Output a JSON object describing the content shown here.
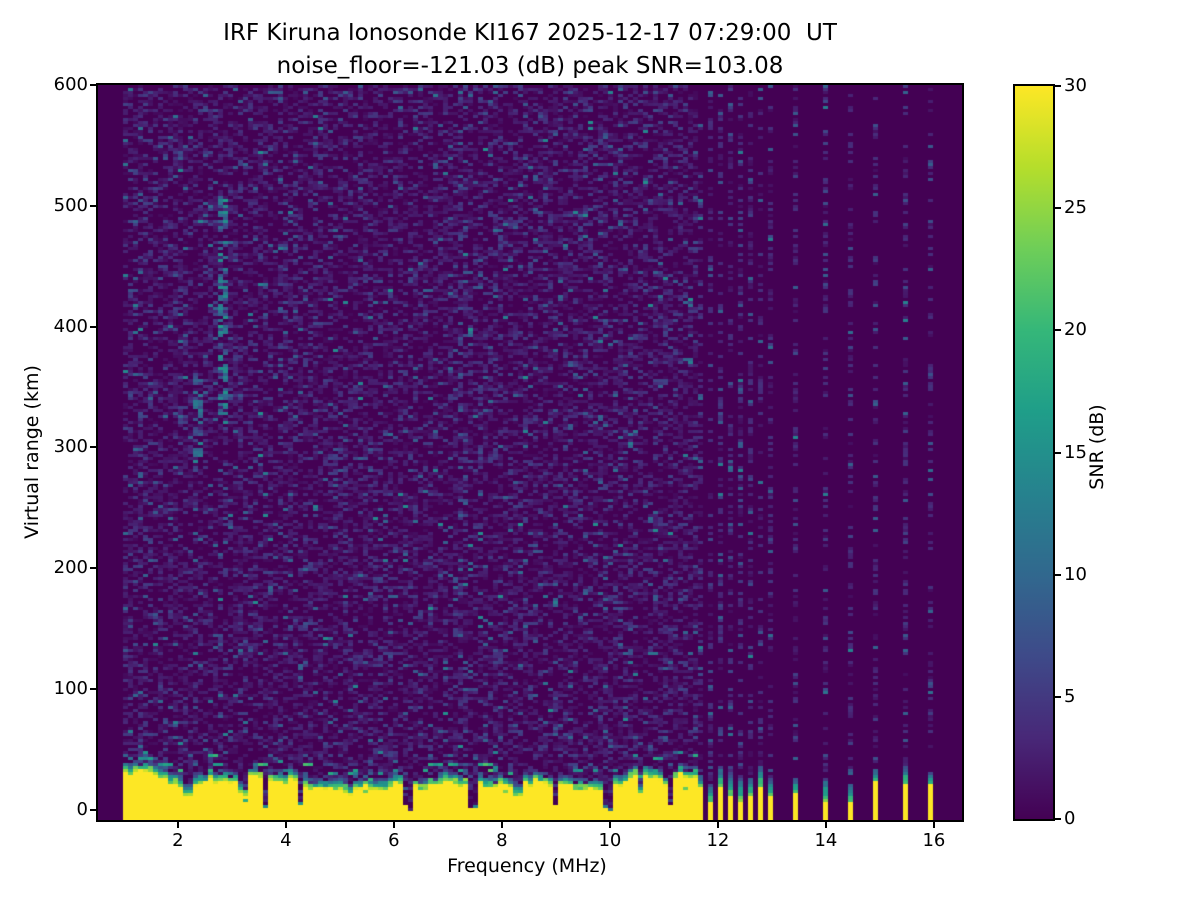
{
  "figure": {
    "title_line1": "IRF Kiruna Ionosonde KI167 2025-12-17 07:29:00  UT",
    "title_line2": "noise_floor=-121.03 (dB) peak SNR=103.08",
    "background_color": "#ffffff",
    "text_color": "#000000"
  },
  "axes": {
    "xlabel": "Frequency (MHz)",
    "ylabel": "Virtual range (km)",
    "x_ticks": [
      2,
      4,
      6,
      8,
      10,
      12,
      14,
      16
    ],
    "y_ticks": [
      0,
      100,
      200,
      300,
      400,
      500,
      600
    ]
  },
  "colorbar": {
    "label": "SNR (dB)",
    "ticks": [
      0,
      5,
      10,
      15,
      20,
      25,
      30
    ]
  },
  "chart_data": {
    "type": "heatmap",
    "title": "IRF Kiruna Ionosonde KI167 2025-12-17 07:29:00  UT",
    "subtitle": "noise_floor=-121.03 (dB) peak SNR=103.08",
    "station": "KI167",
    "timestamp_ut": "2025-12-17 07:29:00",
    "noise_floor_db": -121.03,
    "peak_snr_db": 103.08,
    "xlabel": "Frequency (MHz)",
    "ylabel": "Virtual range (km)",
    "xlim": [
      0.52,
      16.52
    ],
    "ylim": [
      -8.3,
      600
    ],
    "colormap": {
      "name": "viridis",
      "vmin": 0,
      "vmax": 30,
      "stops": [
        "#440154",
        "#482878",
        "#3e4a89",
        "#31688e",
        "#26828e",
        "#1f9e89",
        "#35b779",
        "#6ece58",
        "#b5de2b",
        "#fde725"
      ]
    },
    "seed": 167,
    "sweep": {
      "f_start_mhz": 1.0,
      "f_end_mhz": 11.62
    },
    "ground_clutter": {
      "top_km_mean": 28,
      "top_km_min": 16,
      "top_km_max": 44,
      "notch_freqs_mhz": [
        3.63,
        4.28,
        6.27,
        7.48,
        9.0,
        9.95,
        11.13
      ],
      "minor_dip_freqs_mhz": [
        2.2,
        3.2,
        5.15,
        8.3,
        10.55
      ]
    },
    "echo_traces": [
      {
        "f_mhz": 2.83,
        "half_width_mhz": 0.07,
        "range_km": [
          330,
          515
        ],
        "density": 0.6,
        "snr_db": [
          6,
          17
        ]
      },
      {
        "f_mhz": 2.36,
        "half_width_mhz": 0.08,
        "range_km": [
          290,
          360
        ],
        "density": 0.5,
        "snr_db": [
          5,
          14
        ]
      },
      {
        "f_mhz": 7.25,
        "half_width_mhz": 0.06,
        "range_km": [
          20,
          600
        ],
        "density": 0.15,
        "snr_db": [
          2,
          9
        ]
      }
    ],
    "stripe_freqs_mhz": [
      11.68,
      11.87,
      12.05,
      12.24,
      12.43,
      12.61,
      12.8,
      12.98,
      13.46,
      13.96,
      14.46,
      14.96,
      15.46,
      15.96
    ]
  }
}
